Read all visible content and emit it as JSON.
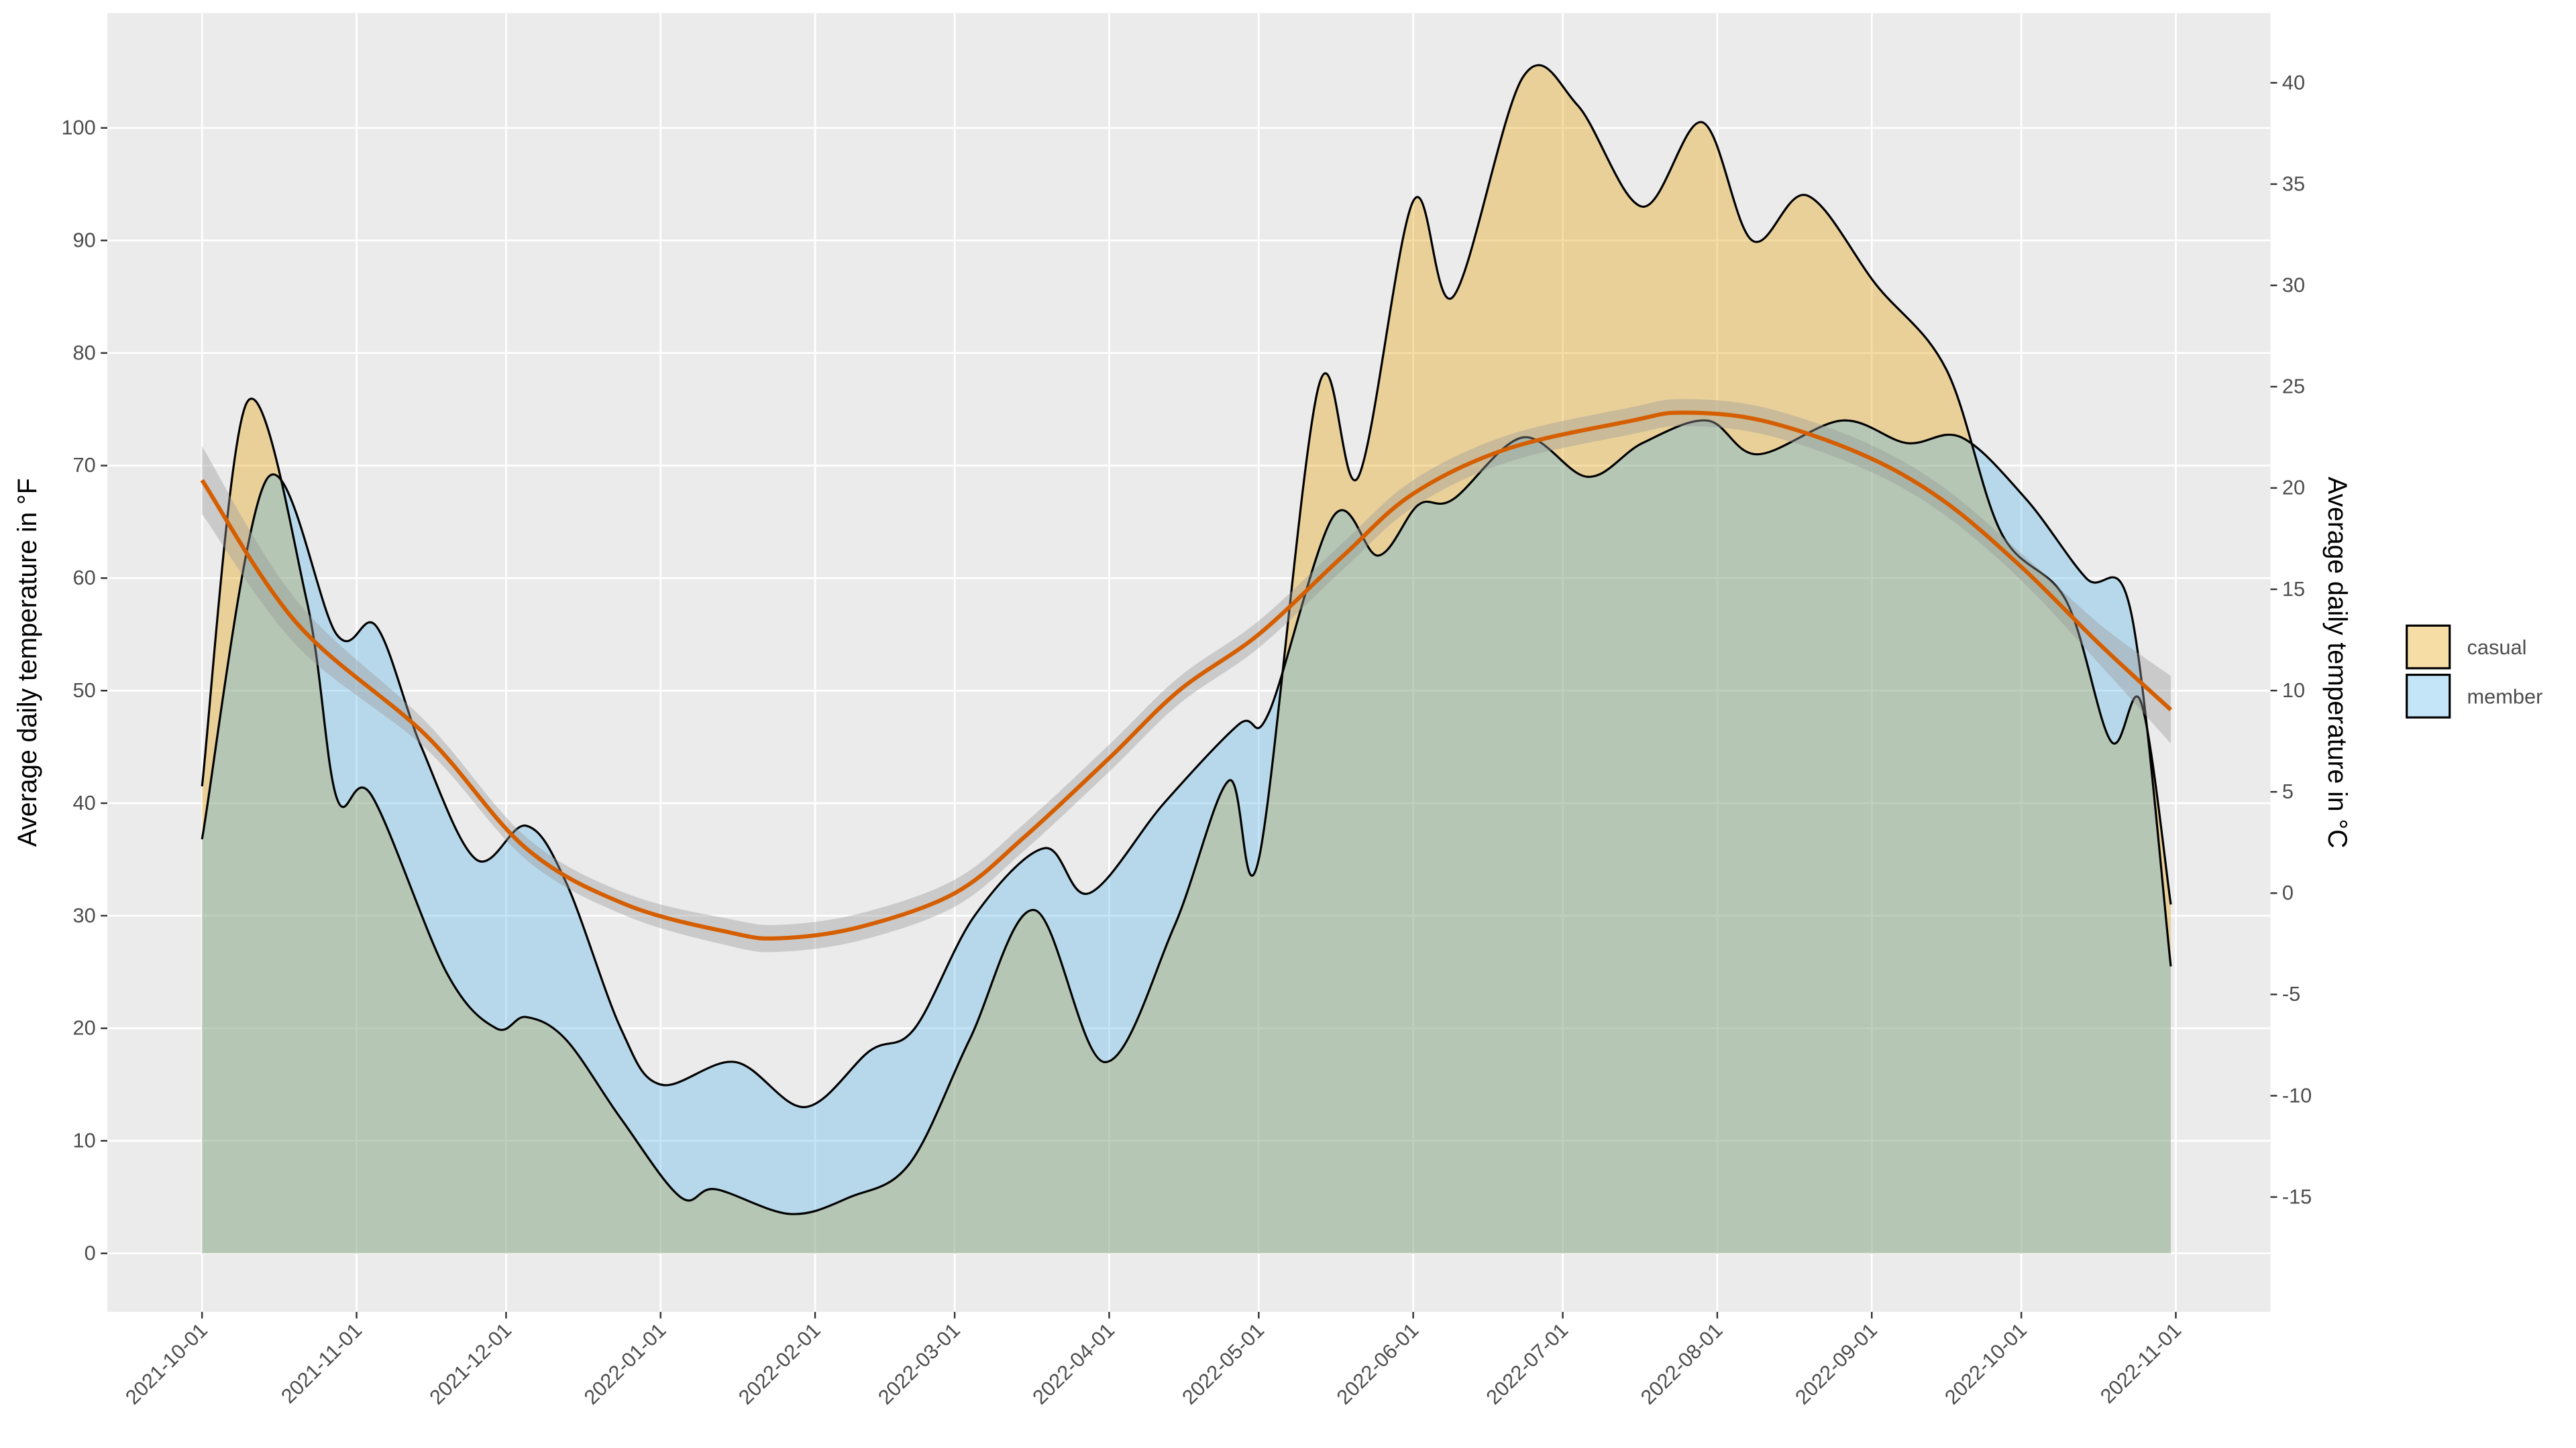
{
  "chart_data": {
    "type": "area",
    "y_label": "Average daily temperature in °F",
    "y2_label": "Average daily temperature in °C",
    "xlim": [
      "2021-09-12",
      "2022-11-20"
    ],
    "xticks": [
      "2021-10-01",
      "2021-11-01",
      "2021-12-01",
      "2022-01-01",
      "2022-02-01",
      "2022-03-01",
      "2022-04-01",
      "2022-05-01",
      "2022-06-01",
      "2022-07-01",
      "2022-08-01",
      "2022-09-01",
      "2022-10-01",
      "2022-11-01"
    ],
    "ylim": [
      -5.2,
      110.2
    ],
    "yticks": [
      0,
      10,
      20,
      30,
      40,
      50,
      60,
      70,
      80,
      90,
      100
    ],
    "y2lim": [
      -20.67,
      43.44
    ],
    "y2ticks": [
      -15,
      -10,
      -5,
      0,
      5,
      10,
      15,
      20,
      25,
      30,
      35,
      40
    ],
    "grid": true,
    "legend_position": "right",
    "series": [
      {
        "name": "casual",
        "color": "#E69F00",
        "x": [
          "2021-10-01",
          "2021-10-10",
          "2021-10-22",
          "2021-10-28",
          "2021-11-04",
          "2021-11-19",
          "2021-11-29",
          "2021-12-05",
          "2021-12-13",
          "2021-12-24",
          "2022-01-05",
          "2022-01-12",
          "2022-01-27",
          "2022-02-08",
          "2022-02-20",
          "2022-03-04",
          "2022-03-17",
          "2022-03-31",
          "2022-04-14",
          "2022-04-25",
          "2022-05-01",
          "2022-05-13",
          "2022-05-21",
          "2022-06-01",
          "2022-06-09",
          "2022-06-23",
          "2022-07-04",
          "2022-07-17",
          "2022-07-29",
          "2022-08-08",
          "2022-08-19",
          "2022-09-02",
          "2022-09-16",
          "2022-09-27",
          "2022-10-10",
          "2022-10-19",
          "2022-10-25",
          "2022-10-31"
        ],
        "values": [
          41.5,
          75.6,
          58,
          40.5,
          40.7,
          25,
          20,
          21,
          19,
          12,
          5,
          5.7,
          3.5,
          5,
          8,
          19,
          30.5,
          17,
          29,
          42,
          35,
          77,
          69,
          93.5,
          85,
          104.5,
          102,
          93,
          100.5,
          90,
          94,
          86,
          78.5,
          64,
          58,
          45.5,
          49,
          31
        ]
      },
      {
        "name": "member",
        "color": "#56B4E9",
        "x": [
          "2021-10-01",
          "2021-10-14",
          "2021-10-28",
          "2021-11-05",
          "2021-11-14",
          "2021-11-25",
          "2021-12-05",
          "2021-12-13",
          "2021-12-24",
          "2022-01-01",
          "2022-01-16",
          "2022-01-30",
          "2022-02-12",
          "2022-02-21",
          "2022-03-05",
          "2022-03-19",
          "2022-03-28",
          "2022-04-12",
          "2022-04-27",
          "2022-05-03",
          "2022-05-16",
          "2022-05-25",
          "2022-06-02",
          "2022-06-09",
          "2022-06-23",
          "2022-07-06",
          "2022-07-17",
          "2022-07-30",
          "2022-08-09",
          "2022-08-26",
          "2022-09-08",
          "2022-09-19",
          "2022-10-02",
          "2022-10-14",
          "2022-10-23",
          "2022-10-31"
        ],
        "values": [
          36.8,
          68.8,
          55,
          55.7,
          45,
          35,
          38,
          33,
          20,
          15,
          17,
          13,
          18,
          20,
          30,
          36,
          32,
          40,
          47,
          48,
          65.5,
          62,
          66.5,
          67,
          72.5,
          69,
          72,
          74,
          71,
          74,
          72,
          72.5,
          67,
          60,
          57,
          25.5
        ]
      }
    ],
    "smooth": {
      "color": "#D55E00",
      "x": [
        "2021-10-01",
        "2021-10-20",
        "2021-11-15",
        "2021-12-05",
        "2021-12-25",
        "2022-01-15",
        "2022-01-25",
        "2022-02-10",
        "2022-03-01",
        "2022-03-15",
        "2022-04-01",
        "2022-04-15",
        "2022-05-01",
        "2022-05-18",
        "2022-06-01",
        "2022-06-20",
        "2022-07-15",
        "2022-07-25",
        "2022-08-10",
        "2022-08-30",
        "2022-09-15",
        "2022-10-01",
        "2022-10-17",
        "2022-10-31"
      ],
      "values": [
        68.7,
        56,
        46,
        36,
        31,
        28.5,
        28,
        29,
        32,
        37,
        44,
        50,
        55,
        62,
        67.5,
        71.5,
        74,
        74.7,
        74,
        71,
        67,
        61,
        54,
        48.3
      ],
      "lower": [
        65.7,
        54,
        44.8,
        35,
        30,
        27.3,
        26.8,
        27.8,
        30.8,
        35.8,
        42.8,
        48.8,
        53.8,
        60.8,
        66.3,
        70.3,
        72.8,
        73.5,
        72.8,
        69.8,
        65.8,
        59.8,
        52.2,
        45.3
      ],
      "upper": [
        71.7,
        58,
        47.2,
        37,
        32,
        29.7,
        29.2,
        30.2,
        33.2,
        38.2,
        45.2,
        51.2,
        56.2,
        63.2,
        68.7,
        72.7,
        75.2,
        75.9,
        75.2,
        72.2,
        68.2,
        62.2,
        55.8,
        51.3
      ]
    }
  }
}
